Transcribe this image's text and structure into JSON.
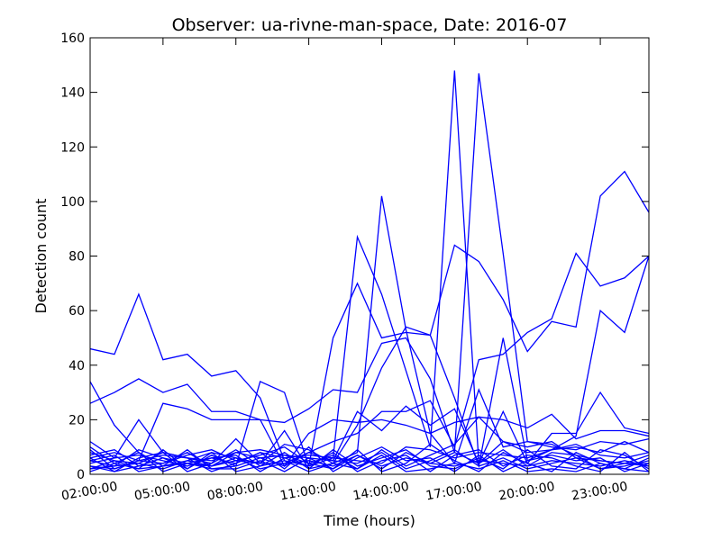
{
  "chart_data": {
    "type": "line",
    "title": "Observer: ua-rivne-man-space, Date: 2016-07",
    "xlabel": "Time (hours)",
    "ylabel": "Detection count",
    "x_tick_labels": [
      "02:00:00",
      "05:00:00",
      "08:00:00",
      "11:00:00",
      "14:00:00",
      "17:00:00",
      "20:00:00",
      "23:00:00"
    ],
    "x_tick_hours": [
      2,
      5,
      8,
      11,
      14,
      17,
      20,
      23
    ],
    "xlim": [
      2,
      25
    ],
    "ylim": [
      0,
      160
    ],
    "yticks": [
      0,
      20,
      40,
      60,
      80,
      100,
      120,
      140,
      160
    ],
    "x_hours": [
      2,
      3,
      4,
      5,
      6,
      7,
      8,
      9,
      10,
      11,
      12,
      13,
      14,
      15,
      16,
      17,
      18,
      19,
      20,
      21,
      22,
      23,
      24,
      25
    ],
    "line_color": "#0000ff",
    "grid": false,
    "legend": "none",
    "series": [
      {
        "values": [
          46,
          44,
          66,
          42,
          44,
          36,
          38,
          28,
          5,
          3,
          6,
          87,
          66,
          38,
          10,
          148,
          4,
          12,
          10,
          12,
          6,
          5,
          4,
          4
        ]
      },
      {
        "values": [
          26,
          30,
          35,
          30,
          33,
          23,
          23,
          20,
          19,
          24,
          31,
          30,
          48,
          50,
          35,
          8,
          147,
          81,
          12,
          11,
          7,
          5,
          4,
          3
        ]
      },
      {
        "values": [
          34,
          18,
          8,
          3,
          4,
          2,
          3,
          34,
          30,
          3,
          50,
          70,
          50,
          52,
          51,
          84,
          78,
          64,
          45,
          56,
          54,
          102,
          111,
          96
        ]
      },
      {
        "values": [
          12,
          6,
          20,
          8,
          6,
          4,
          13,
          4,
          4,
          8,
          12,
          15,
          23,
          23,
          27,
          10,
          42,
          44,
          52,
          57,
          81,
          69,
          72,
          80
        ]
      },
      {
        "values": [
          5,
          3,
          9,
          6,
          4,
          3,
          5,
          4,
          16,
          2,
          4,
          18,
          39,
          54,
          51,
          28,
          3,
          50,
          5,
          9,
          14,
          60,
          52,
          80
        ]
      },
      {
        "values": [
          3,
          2,
          5,
          26,
          24,
          20,
          20,
          20,
          3,
          15,
          20,
          19,
          20,
          18,
          15,
          19,
          21,
          20,
          17,
          22,
          13,
          16,
          16,
          14
        ]
      },
      {
        "values": [
          8,
          5,
          4,
          8,
          6,
          5,
          8,
          9,
          7,
          6,
          5,
          23,
          16,
          25,
          18,
          24,
          4,
          23,
          4,
          15,
          15,
          30,
          17,
          15
        ]
      },
      {
        "values": [
          10,
          4,
          2,
          3,
          5,
          8,
          6,
          4,
          11,
          9,
          4,
          8,
          102,
          53,
          15,
          4,
          31,
          10,
          12,
          10,
          9,
          12,
          11,
          13
        ]
      },
      {
        "values": [
          6,
          8,
          5,
          4,
          7,
          9,
          5,
          7,
          10,
          4,
          7,
          2,
          9,
          3,
          7,
          11,
          21,
          12,
          8,
          9,
          10,
          8,
          12,
          8
        ]
      },
      {
        "values": [
          4,
          6,
          7,
          5,
          3,
          6,
          4,
          8,
          6,
          7,
          6,
          5,
          4,
          10,
          9,
          6,
          8,
          7,
          6,
          9,
          11,
          7,
          6,
          8
        ]
      },
      {
        "values": [
          2,
          3,
          4,
          2,
          5,
          3,
          6,
          2,
          4,
          5,
          3,
          7,
          3,
          6,
          4,
          3,
          5,
          4,
          3,
          5,
          4,
          3,
          5,
          3
        ]
      },
      {
        "values": [
          7,
          9,
          3,
          6,
          2,
          7,
          3,
          6,
          3,
          8,
          5,
          4,
          8,
          2,
          5,
          9,
          3,
          6,
          2,
          4,
          6,
          2,
          3,
          5
        ]
      },
      {
        "values": [
          3,
          1,
          6,
          8,
          1,
          4,
          9,
          3,
          8,
          2,
          9,
          3,
          6,
          9,
          3,
          2,
          6,
          2,
          9,
          3,
          2,
          9,
          7,
          2
        ]
      },
      {
        "values": [
          5,
          7,
          1,
          3,
          9,
          2,
          2,
          5,
          1,
          6,
          2,
          9,
          1,
          4,
          11,
          5,
          1,
          8,
          4,
          1,
          8,
          4,
          2,
          6
        ]
      },
      {
        "values": [
          1,
          4,
          8,
          1,
          4,
          6,
          7,
          1,
          6,
          3,
          8,
          1,
          5,
          7,
          1,
          7,
          9,
          3,
          7,
          6,
          3,
          1,
          8,
          1
        ]
      },
      {
        "values": [
          9,
          2,
          5,
          7,
          6,
          1,
          4,
          8,
          2,
          10,
          1,
          6,
          10,
          5,
          6,
          1,
          7,
          1,
          5,
          7,
          5,
          6,
          1,
          4
        ]
      },
      {
        "values": [
          2,
          5,
          2,
          9,
          2,
          8,
          1,
          3,
          5,
          1,
          4,
          2,
          7,
          1,
          2,
          4,
          2,
          5,
          1,
          2,
          1,
          4,
          2,
          1
        ]
      },
      {
        "values": [
          6,
          1,
          3,
          4,
          8,
          3,
          8,
          6,
          7,
          4,
          2,
          7,
          2,
          8,
          4,
          8,
          4,
          9,
          3,
          8,
          7,
          2,
          4,
          7
        ]
      }
    ]
  }
}
